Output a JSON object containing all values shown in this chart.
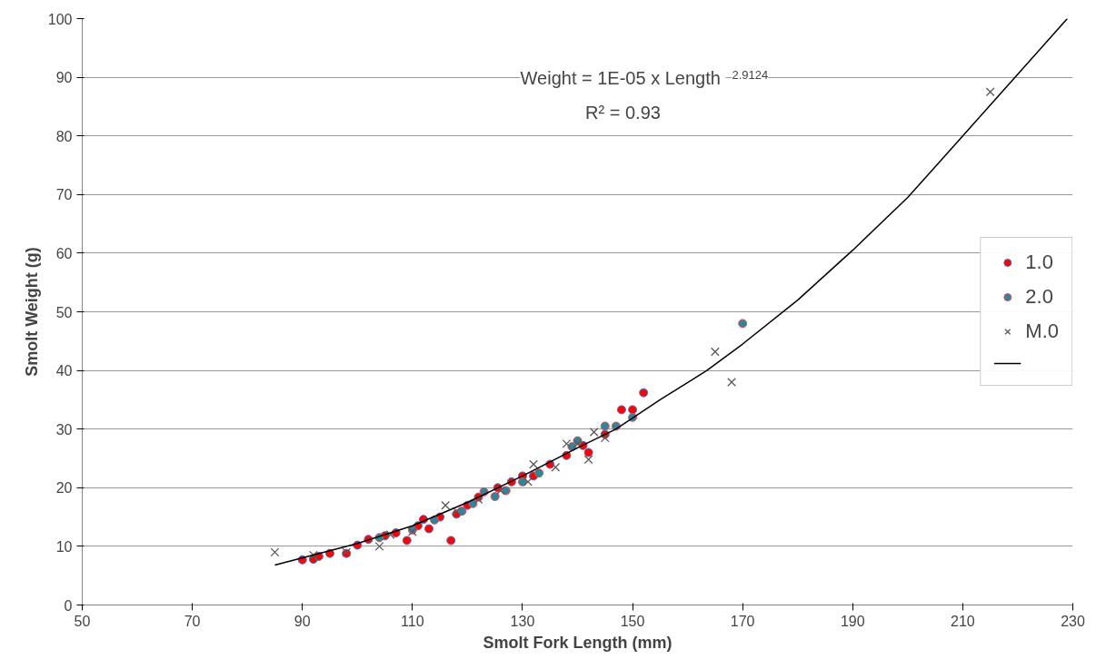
{
  "chart_data": {
    "type": "scatter",
    "xlabel": "Smolt Fork Length (mm)",
    "ylabel": "Smolt Weight (g)",
    "xlim": [
      50,
      230
    ],
    "xticks": [
      50,
      70,
      90,
      110,
      130,
      150,
      170,
      190,
      210,
      230
    ],
    "ylim": [
      0,
      100
    ],
    "yticks": [
      0,
      10,
      20,
      30,
      40,
      50,
      60,
      70,
      80,
      90,
      100
    ],
    "grid": "y",
    "legend": "right",
    "annotations": [
      "Weight = 1E-05 x Length $^{2.9124}$",
      "R² = 0.93"
    ],
    "series": [
      {
        "name": "1.0",
        "color": "#ff0000",
        "marker": "circle",
        "x": [
          90,
          92,
          93,
          95,
          98,
          100,
          102,
          105,
          107,
          109,
          111,
          112,
          113,
          115,
          117,
          118,
          120,
          122,
          125.5,
          128,
          130,
          132,
          135,
          138,
          141,
          142,
          145,
          148,
          150,
          152
        ],
        "values": [
          7.7,
          7.8,
          8.3,
          8.8,
          8.8,
          10.2,
          11.2,
          11.8,
          12.3,
          11,
          13.5,
          14.6,
          13,
          15,
          11,
          15.5,
          17,
          18.4,
          20,
          21,
          22,
          22,
          24,
          25.5,
          27.2,
          26,
          29.1,
          33.3,
          33.3,
          36.2
        ]
      },
      {
        "name": "2.0",
        "color": "#31849b",
        "marker": "circle",
        "x": [
          104,
          110,
          114,
          119,
          121,
          123,
          125,
          127,
          130,
          133,
          139,
          140,
          145,
          147,
          150,
          170
        ],
        "values": [
          11.5,
          12.8,
          14.5,
          16,
          17.3,
          19.3,
          18.5,
          19.5,
          21,
          22.5,
          27,
          28,
          30.5,
          30.5,
          32,
          48
        ]
      },
      {
        "name": "M.0",
        "color": "#595959",
        "marker": "cross",
        "x": [
          85,
          92,
          98,
          104,
          106,
          110,
          116,
          118,
          122,
          126,
          131,
          132,
          136,
          138,
          140,
          142,
          143,
          145,
          165,
          168,
          215
        ],
        "values": [
          9,
          8.5,
          9,
          10,
          12,
          12.5,
          17,
          16,
          18,
          19.5,
          21,
          24,
          23.5,
          27.5,
          27.5,
          24.8,
          29.5,
          28.5,
          43.2,
          38,
          87.5
        ]
      },
      {
        "type": "line",
        "color": "#000000",
        "marker": "none",
        "x": [
          85,
          100,
          110,
          120,
          130,
          140,
          147,
          155,
          163.5,
          170,
          180,
          190,
          200,
          210,
          220,
          229
        ],
        "values": [
          6.8,
          10.5,
          13.5,
          17.5,
          22,
          26.8,
          30,
          35,
          40,
          44.5,
          52,
          60.5,
          69.5,
          80,
          90.5,
          100
        ]
      }
    ]
  }
}
